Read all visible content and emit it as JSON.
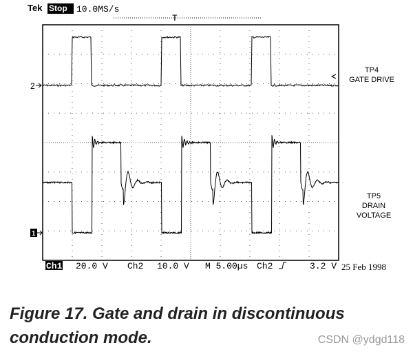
{
  "header": {
    "brand": "Tek",
    "state": "Stop",
    "rate": "10.0MS/s",
    "trigger": "T"
  },
  "markers": {
    "ch2": "2",
    "ch1": "1"
  },
  "labels": {
    "tp4": "TP4",
    "gate": "GATE DRIVE",
    "tp5": "TP5",
    "drain": "DRAIN",
    "voltage": "VOLTAGE"
  },
  "status": {
    "ch1": "Ch1",
    "ch1_scale": "20.0 V",
    "ch2": "Ch2",
    "ch2_scale": "10.0 V",
    "time": "M 5.00µs",
    "trig_src": "Ch2",
    "trig_level": "3.2 V",
    "date": "25 Feb 1998"
  },
  "caption": {
    "line1": "Figure 17. Gate and drain in discontinuous",
    "line2": "conduction mode."
  },
  "watermark": "CSDN @ydgd118"
}
